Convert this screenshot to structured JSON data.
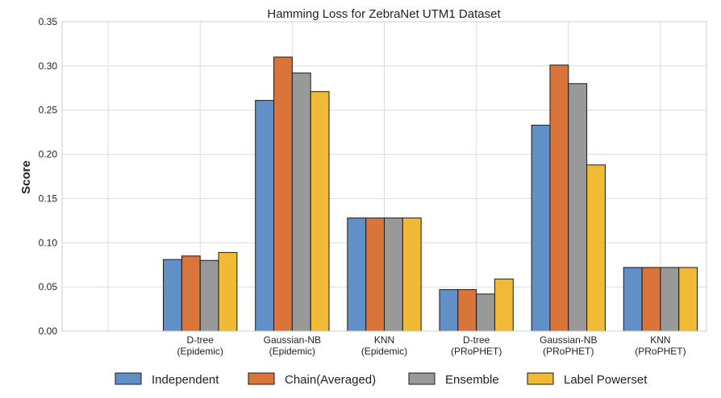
{
  "chart_data": {
    "type": "bar",
    "title": "Hamming Loss for ZebraNet UTM1 Dataset",
    "xlabel": "",
    "ylabel": "Score",
    "ylim": [
      0,
      0.35
    ],
    "yticks": [
      "0.00",
      "0.05",
      "0.10",
      "0.15",
      "0.20",
      "0.25",
      "0.30",
      "0.35"
    ],
    "categories": [
      [
        "D-tree",
        "(Epidemic)"
      ],
      [
        "Gaussian-NB",
        "(Epidemic)"
      ],
      [
        "KNN",
        "(Epidemic)"
      ],
      [
        "D-tree",
        "(PRoPHET)"
      ],
      [
        "Gaussian-NB",
        "(PRoPHET)"
      ],
      [
        "KNN",
        "(PRoPHET)"
      ]
    ],
    "series": [
      {
        "name": "Independent",
        "color": "#6190c9",
        "values": [
          0.081,
          0.261,
          0.128,
          0.047,
          0.233,
          0.072
        ]
      },
      {
        "name": "Chain(Averaged)",
        "color": "#d9743a",
        "values": [
          0.085,
          0.31,
          0.128,
          0.047,
          0.301,
          0.072
        ]
      },
      {
        "name": "Ensemble",
        "color": "#999999",
        "values": [
          0.08,
          0.292,
          0.128,
          0.042,
          0.28,
          0.072
        ]
      },
      {
        "name": "Label Powerset",
        "color": "#f0ba36",
        "values": [
          0.089,
          0.271,
          0.128,
          0.059,
          0.188,
          0.072
        ]
      }
    ],
    "grid": true,
    "legend_position": "bottom"
  }
}
